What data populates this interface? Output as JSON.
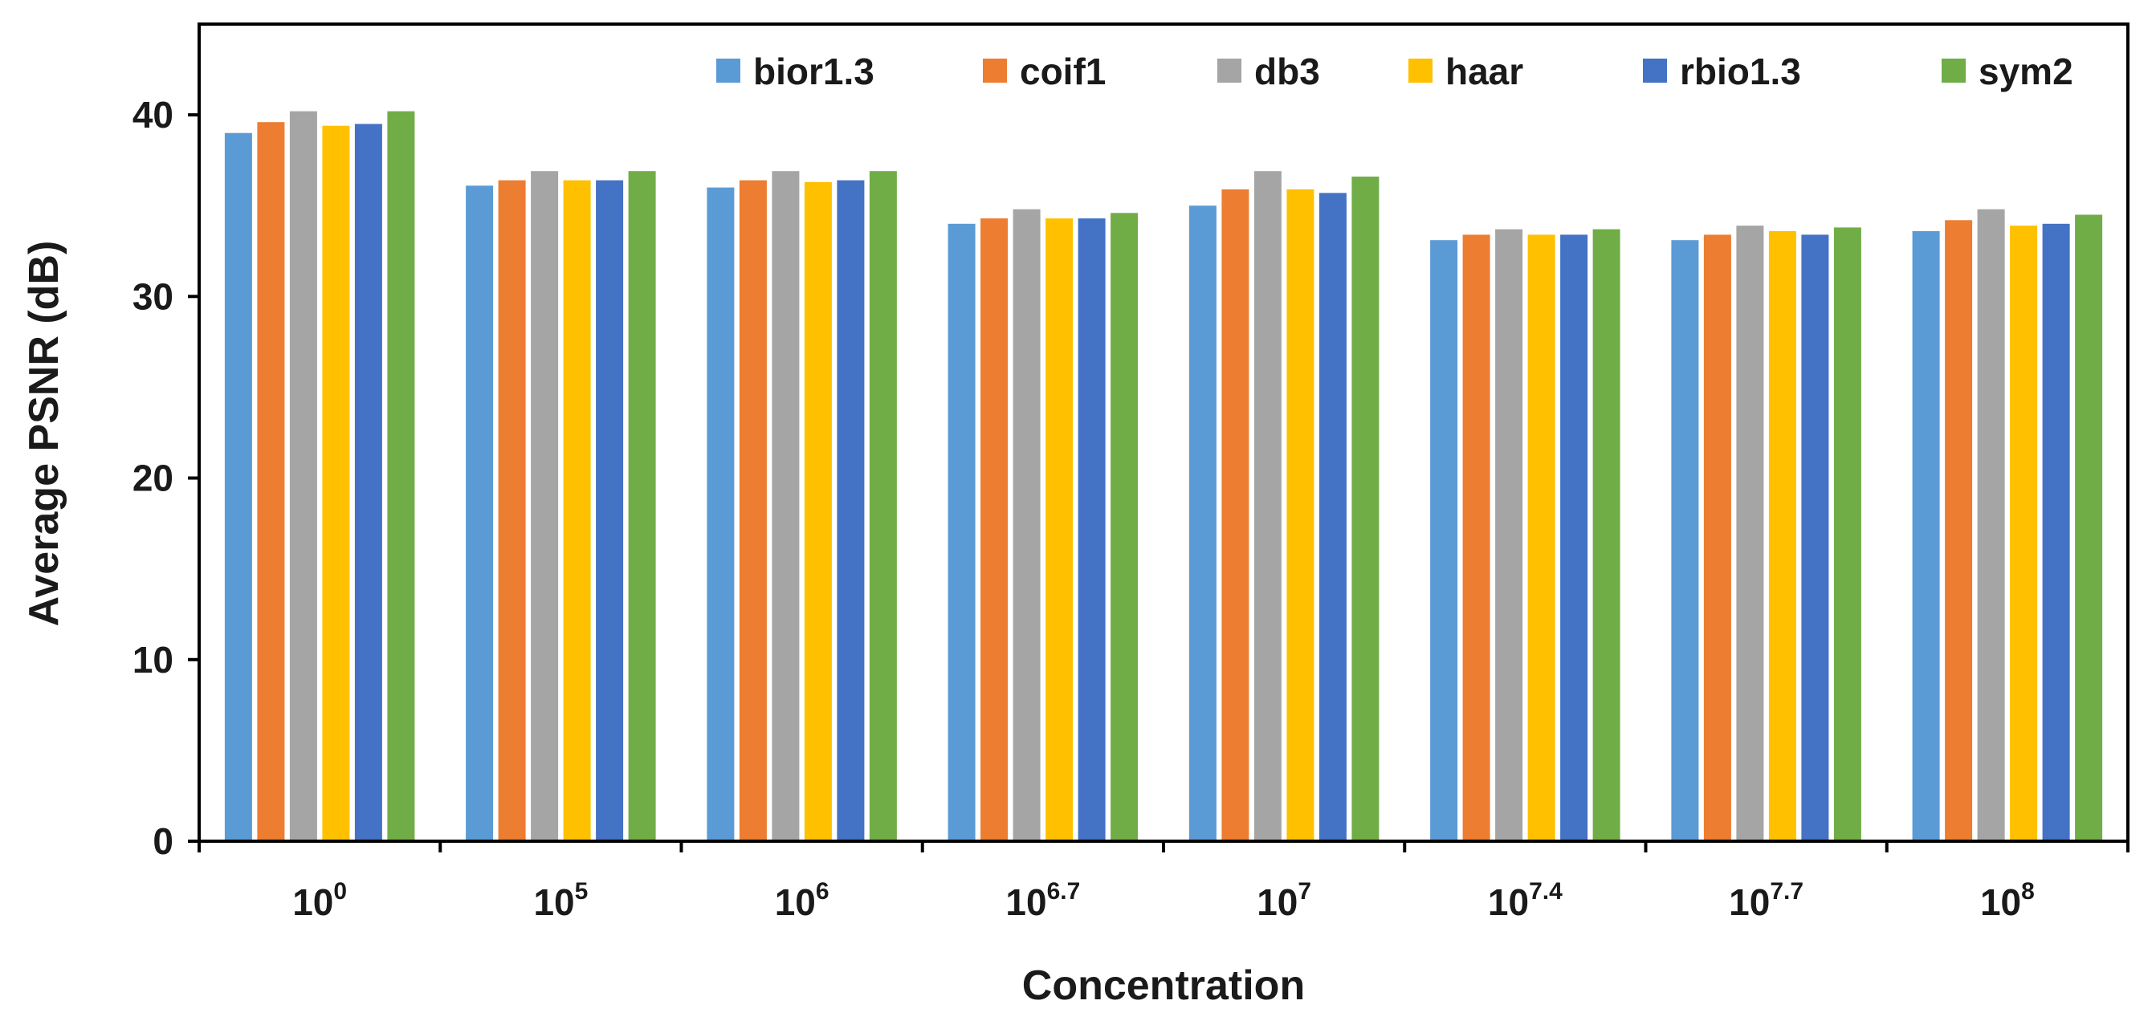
{
  "chart_data": {
    "type": "bar",
    "title": "",
    "xlabel": "Concentration",
    "ylabel": "Average PSNR (dB)",
    "ylim": [
      0,
      45
    ],
    "yticks": [
      0,
      10,
      20,
      30,
      40
    ],
    "grid": false,
    "legend_position": "top-right",
    "categories": [
      {
        "base": "10",
        "exp": "0"
      },
      {
        "base": "10",
        "exp": "5"
      },
      {
        "base": "10",
        "exp": "6"
      },
      {
        "base": "10",
        "exp": "6.7"
      },
      {
        "base": "10",
        "exp": "7"
      },
      {
        "base": "10",
        "exp": "7.4"
      },
      {
        "base": "10",
        "exp": "7.7"
      },
      {
        "base": "10",
        "exp": "8"
      }
    ],
    "series": [
      {
        "name": "bior1.3",
        "color": "#5B9BD5",
        "values": [
          39.0,
          36.1,
          36.0,
          34.0,
          35.0,
          33.1,
          33.1,
          33.6
        ]
      },
      {
        "name": "coif1",
        "color": "#ED7D31",
        "values": [
          39.6,
          36.4,
          36.4,
          34.3,
          35.9,
          33.4,
          33.4,
          34.2
        ]
      },
      {
        "name": "db3",
        "color": "#A5A5A5",
        "values": [
          40.2,
          36.9,
          36.9,
          34.8,
          36.9,
          33.7,
          33.9,
          34.8
        ]
      },
      {
        "name": "haar",
        "color": "#FFC000",
        "values": [
          39.4,
          36.4,
          36.3,
          34.3,
          35.9,
          33.4,
          33.6,
          33.9
        ]
      },
      {
        "name": "rbio1.3",
        "color": "#4472C4",
        "values": [
          39.5,
          36.4,
          36.4,
          34.3,
          35.7,
          33.4,
          33.4,
          34.0
        ]
      },
      {
        "name": "sym2",
        "color": "#70AD47",
        "values": [
          40.2,
          36.9,
          36.9,
          34.6,
          36.6,
          33.7,
          33.8,
          34.5
        ]
      }
    ]
  }
}
